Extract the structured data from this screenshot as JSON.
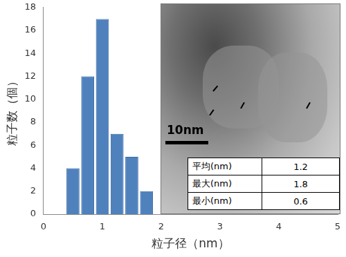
{
  "chart_data": {
    "type": "histogram",
    "bins": [
      0.375,
      0.625,
      0.875,
      1.125,
      1.375,
      1.625,
      1.875
    ],
    "values": [
      4,
      12,
      17,
      7,
      5,
      2
    ],
    "color": "#4f81bd",
    "x_label": "粒子径（nm）",
    "y_label": "粒子数（個）",
    "xlim": [
      0,
      5
    ],
    "xticks": [
      0,
      1,
      2,
      3,
      4,
      5
    ],
    "ylim": [
      0,
      18
    ],
    "yticks": [
      0,
      2,
      4,
      6,
      8,
      10,
      12,
      14,
      16,
      18
    ],
    "grid": false
  },
  "inset": {
    "scale_bar": "10nm",
    "table": [
      [
        "平均(nm)",
        1.2
      ],
      [
        "最大(nm)",
        1.8
      ],
      [
        "最小(nm)",
        0.6
      ]
    ]
  }
}
